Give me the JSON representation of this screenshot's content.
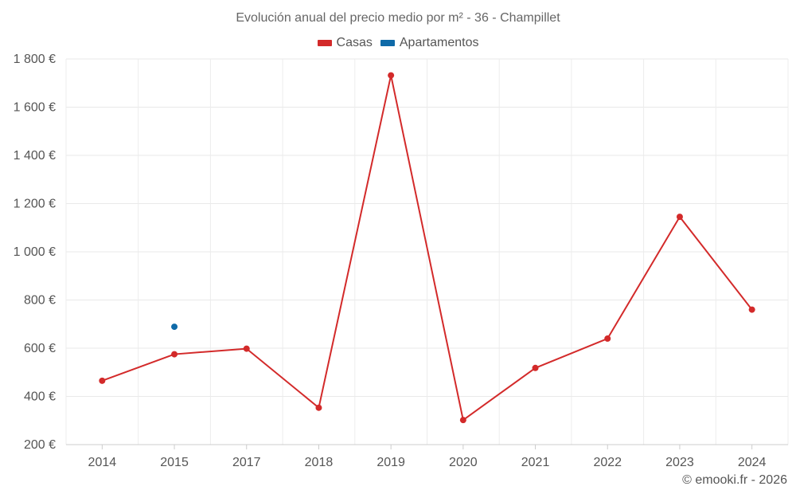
{
  "chart_data": {
    "type": "line",
    "title": "Evolución anual del precio medio por m² - 36 - Champillet",
    "categories": [
      "2014",
      "2015",
      "2017",
      "2018",
      "2019",
      "2020",
      "2021",
      "2022",
      "2023",
      "2024"
    ],
    "series": [
      {
        "name": "Casas",
        "color": "#d32a2a",
        "values": [
          465,
          575,
          598,
          353,
          1732,
          302,
          518,
          640,
          1145,
          760
        ]
      },
      {
        "name": "Apartamentos",
        "color": "#0f6aa8",
        "values": [
          null,
          689,
          null,
          null,
          null,
          null,
          null,
          null,
          null,
          null
        ]
      }
    ],
    "ylim": [
      200,
      1800
    ],
    "yticks": [
      200,
      400,
      600,
      800,
      1000,
      1200,
      1400,
      1600,
      1800
    ],
    "ytick_labels": [
      "200 €",
      "400 €",
      "600 €",
      "800 €",
      "1 000 €",
      "1 200 €",
      "1 400 €",
      "1 600 €",
      "1 800 €"
    ],
    "xlabel": "",
    "ylabel": "",
    "grid": true,
    "legend_position": "top-center"
  },
  "credit": "© emooki.fr - 2026"
}
